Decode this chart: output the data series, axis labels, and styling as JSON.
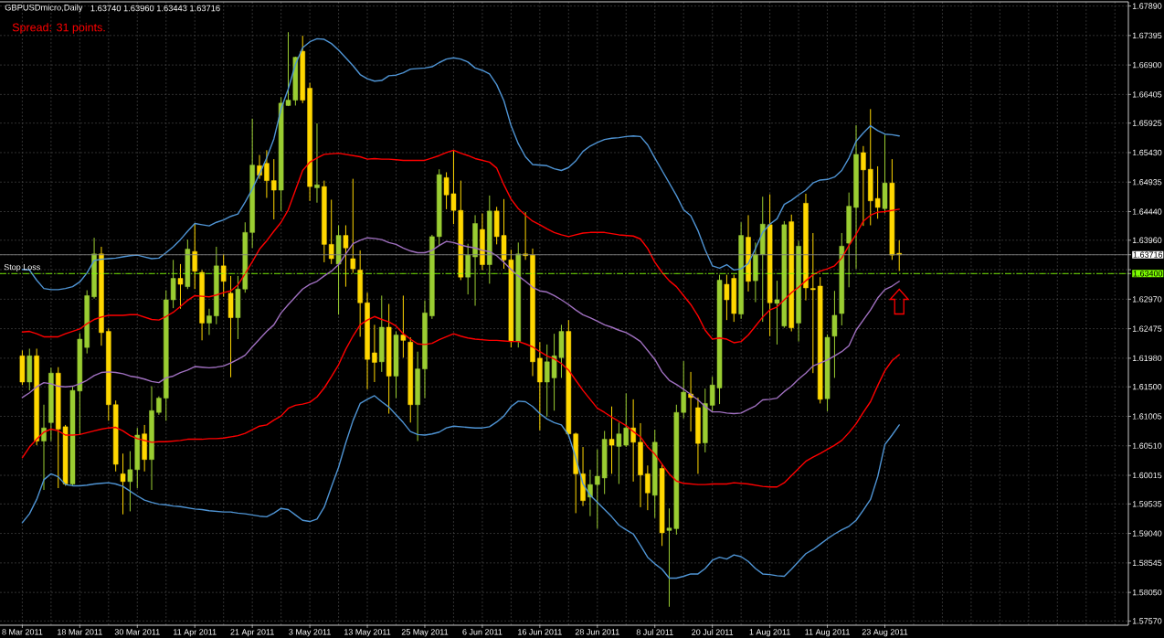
{
  "chart_data": {
    "type": "candlestick",
    "title": "GBPUSDmicro,Daily",
    "subtitle": "1.63740 1.63960 1.63443 1.63716",
    "annotations": [
      "Spread: 31 points."
    ],
    "categories": [
      "8 Mar 2011",
      null,
      null,
      null,
      null,
      null,
      null,
      null,
      "18 Mar 2011",
      null,
      null,
      null,
      null,
      null,
      null,
      null,
      "30 Mar 2011",
      null,
      null,
      null,
      null,
      null,
      null,
      null,
      "11 Apr 2011",
      null,
      null,
      null,
      null,
      null,
      null,
      null,
      "21 Apr 2011",
      null,
      null,
      null,
      null,
      null,
      null,
      null,
      "3 May 2011",
      null,
      null,
      null,
      null,
      null,
      null,
      null,
      "13 May 2011",
      null,
      null,
      null,
      null,
      null,
      null,
      null,
      "25 May 2011",
      null,
      null,
      null,
      null,
      null,
      null,
      null,
      "6 Jun 2011",
      null,
      null,
      null,
      null,
      null,
      null,
      null,
      "16 Jun 2011",
      null,
      null,
      null,
      null,
      null,
      null,
      null,
      "28 Jun 2011",
      null,
      null,
      null,
      null,
      null,
      null,
      null,
      "8 Jul 2011",
      null,
      null,
      null,
      null,
      null,
      null,
      null,
      "20 Jul 2011",
      null,
      null,
      null,
      null,
      null,
      null,
      null,
      "1 Aug 2011",
      null,
      null,
      null,
      null,
      null,
      null,
      null,
      "11 Aug 2011",
      null,
      null,
      null,
      null,
      null,
      null,
      null,
      "23 Aug 2011",
      null,
      null
    ],
    "ohlc": [
      [
        1.6202,
        1.6211,
        1.6153,
        1.6158
      ],
      [
        1.6158,
        1.6214,
        1.6144,
        1.6202
      ],
      [
        1.6202,
        1.6214,
        1.6052,
        1.6059
      ],
      [
        1.6059,
        1.612,
        1.5977,
        1.6081
      ],
      [
        1.609,
        1.6182,
        1.6059,
        1.6173
      ],
      [
        1.6173,
        1.6183,
        1.598,
        1.6079
      ],
      [
        1.6083,
        1.6086,
        1.5984,
        1.5987
      ],
      [
        1.5987,
        1.6151,
        1.5984,
        1.6144
      ],
      [
        1.6143,
        1.624,
        1.6069,
        1.623
      ],
      [
        1.6216,
        1.6312,
        1.6206,
        1.6303
      ],
      [
        1.6301,
        1.64,
        1.6298,
        1.6373
      ],
      [
        1.6373,
        1.6385,
        1.6219,
        1.6241
      ],
      [
        1.6243,
        1.6248,
        1.6093,
        1.612
      ],
      [
        1.612,
        1.6127,
        1.6008,
        1.602
      ],
      [
        1.6004,
        1.6038,
        1.5936,
        1.5991
      ],
      [
        1.5991,
        1.6042,
        1.5941,
        1.6011
      ],
      [
        1.6011,
        1.6081,
        1.598,
        1.6069
      ],
      [
        1.6071,
        1.6086,
        1.6008,
        1.6028
      ],
      [
        1.6028,
        1.6151,
        1.5977,
        1.611
      ],
      [
        1.6107,
        1.6134,
        1.6103,
        1.6131
      ],
      [
        1.6131,
        1.6312,
        1.6093,
        1.6296
      ],
      [
        1.6296,
        1.6363,
        1.6282,
        1.6332
      ],
      [
        1.6332,
        1.6356,
        1.6281,
        1.6322
      ],
      [
        1.6318,
        1.6397,
        1.6314,
        1.6381
      ],
      [
        1.6377,
        1.6424,
        1.6314,
        1.6344
      ],
      [
        1.6342,
        1.6346,
        1.6228,
        1.6257
      ],
      [
        1.6257,
        1.6281,
        1.6237,
        1.6269
      ],
      [
        1.6269,
        1.6385,
        1.6255,
        1.6353
      ],
      [
        1.6353,
        1.6373,
        1.6301,
        1.6327
      ],
      [
        1.6307,
        1.6336,
        1.6166,
        1.6266
      ],
      [
        1.6266,
        1.6336,
        1.623,
        1.6314
      ],
      [
        1.6314,
        1.6426,
        1.6308,
        1.6409
      ],
      [
        1.6409,
        1.66,
        1.6383,
        1.6522
      ],
      [
        1.6521,
        1.6539,
        1.6499,
        1.6505
      ],
      [
        1.6525,
        1.6547,
        1.6467,
        1.6496
      ],
      [
        1.6496,
        1.6532,
        1.6431,
        1.648
      ],
      [
        1.648,
        1.6636,
        1.6445,
        1.6626
      ],
      [
        1.6622,
        1.6745,
        1.6621,
        1.6631
      ],
      [
        1.6631,
        1.6704,
        1.6622,
        1.6703
      ],
      [
        1.6713,
        1.6739,
        1.6626,
        1.6631
      ],
      [
        1.6651,
        1.666,
        1.6462,
        1.6486
      ],
      [
        1.6484,
        1.6592,
        1.6459,
        1.6489
      ],
      [
        1.6486,
        1.6496,
        1.6359,
        1.6389
      ],
      [
        1.6389,
        1.6464,
        1.6356,
        1.6365
      ],
      [
        1.6356,
        1.6421,
        1.6271,
        1.6404
      ],
      [
        1.6404,
        1.6421,
        1.6318,
        1.6383
      ],
      [
        1.6365,
        1.6499,
        1.6341,
        1.6348
      ],
      [
        1.6346,
        1.6379,
        1.6234,
        1.6291
      ],
      [
        1.6291,
        1.6308,
        1.6146,
        1.6196
      ],
      [
        1.6207,
        1.6254,
        1.6158,
        1.6191
      ],
      [
        1.6192,
        1.6303,
        1.6175,
        1.625
      ],
      [
        1.625,
        1.6289,
        1.6105,
        1.6168
      ],
      [
        1.6168,
        1.6243,
        1.6131,
        1.6237
      ],
      [
        1.6237,
        1.6303,
        1.6199,
        1.6228
      ],
      [
        1.6225,
        1.6233,
        1.609,
        1.612
      ],
      [
        1.612,
        1.6209,
        1.6059,
        1.618
      ],
      [
        1.618,
        1.6295,
        1.6131,
        1.6274
      ],
      [
        1.6269,
        1.6405,
        1.6264,
        1.6402
      ],
      [
        1.6402,
        1.6515,
        1.6387,
        1.6506
      ],
      [
        1.6501,
        1.651,
        1.6448,
        1.6472
      ],
      [
        1.6474,
        1.6547,
        1.6423,
        1.6446
      ],
      [
        1.6446,
        1.6496,
        1.6329,
        1.6334
      ],
      [
        1.6334,
        1.639,
        1.6305,
        1.6371
      ],
      [
        1.6368,
        1.6438,
        1.6286,
        1.6424
      ],
      [
        1.6414,
        1.6441,
        1.6346,
        1.6355
      ],
      [
        1.6355,
        1.6471,
        1.6323,
        1.6445
      ],
      [
        1.6445,
        1.6452,
        1.6389,
        1.6402
      ],
      [
        1.6404,
        1.6465,
        1.6348,
        1.6363
      ],
      [
        1.6363,
        1.638,
        1.6216,
        1.6226
      ],
      [
        1.6226,
        1.6392,
        1.6216,
        1.6373
      ],
      [
        1.6373,
        1.6443,
        1.6363,
        1.637
      ],
      [
        1.6371,
        1.6382,
        1.6168,
        1.6192
      ],
      [
        1.6198,
        1.6225,
        1.6077,
        1.6158
      ],
      [
        1.6158,
        1.6221,
        1.61,
        1.6192
      ],
      [
        1.6165,
        1.6239,
        1.611,
        1.6202
      ],
      [
        1.6199,
        1.6254,
        1.6165,
        1.6243
      ],
      [
        1.6243,
        1.6262,
        1.6066,
        1.6071
      ],
      [
        1.6071,
        1.6073,
        1.5938,
        1.6004
      ],
      [
        1.6004,
        1.6049,
        1.595,
        1.5959
      ],
      [
        1.5965,
        1.6011,
        1.5933,
        1.5986
      ],
      [
        1.5986,
        1.6045,
        1.5912,
        1.6
      ],
      [
        1.5997,
        1.6076,
        1.597,
        1.6062
      ],
      [
        1.6062,
        1.6117,
        1.6004,
        1.6052
      ],
      [
        1.605,
        1.609,
        1.5987,
        1.6071
      ],
      [
        1.6052,
        1.6139,
        1.6049,
        1.6081
      ],
      [
        1.6081,
        1.6129,
        1.5991,
        1.6057
      ],
      [
        1.6057,
        1.6089,
        1.5948,
        1.6002
      ],
      [
        1.6004,
        1.6018,
        1.5943,
        1.5972
      ],
      [
        1.5968,
        1.6078,
        1.593,
        1.6057
      ],
      [
        1.6013,
        1.6021,
        1.5883,
        1.5905
      ],
      [
        1.5909,
        1.5946,
        1.5781,
        1.5913
      ],
      [
        1.5912,
        1.612,
        1.5902,
        1.6107
      ],
      [
        1.6107,
        1.6193,
        1.6097,
        1.6141
      ],
      [
        1.6138,
        1.6175,
        1.6075,
        1.6132
      ],
      [
        1.6115,
        1.6132,
        1.6004,
        1.6055
      ],
      [
        1.6056,
        1.6147,
        1.604,
        1.6122
      ],
      [
        1.6119,
        1.6167,
        1.6108,
        1.6153
      ],
      [
        1.6148,
        1.6338,
        1.6121,
        1.6329
      ],
      [
        1.6322,
        1.6338,
        1.6262,
        1.6296
      ],
      [
        1.6332,
        1.6338,
        1.6259,
        1.6273
      ],
      [
        1.6272,
        1.6426,
        1.6264,
        1.6404
      ],
      [
        1.6401,
        1.6438,
        1.631,
        1.6327
      ],
      [
        1.6328,
        1.6392,
        1.6292,
        1.6372
      ],
      [
        1.6372,
        1.6469,
        1.6259,
        1.6423
      ],
      [
        1.6422,
        1.6473,
        1.6235,
        1.6291
      ],
      [
        1.629,
        1.6328,
        1.6221,
        1.6296
      ],
      [
        1.6252,
        1.6428,
        1.6249,
        1.6422
      ],
      [
        1.6427,
        1.6439,
        1.6243,
        1.6249
      ],
      [
        1.6257,
        1.6395,
        1.6226,
        1.6386
      ],
      [
        1.6458,
        1.6474,
        1.6295,
        1.6316
      ],
      [
        1.6315,
        1.6408,
        1.6173,
        1.6313
      ],
      [
        1.6319,
        1.6334,
        1.6122,
        1.6129
      ],
      [
        1.613,
        1.6238,
        1.6109,
        1.6233
      ],
      [
        1.6235,
        1.6311,
        1.6165,
        1.627
      ],
      [
        1.6273,
        1.6408,
        1.6253,
        1.6386
      ],
      [
        1.6391,
        1.6476,
        1.6317,
        1.6453
      ],
      [
        1.6451,
        1.6589,
        1.6348,
        1.654
      ],
      [
        1.6543,
        1.6554,
        1.642,
        1.6514
      ],
      [
        1.6515,
        1.6616,
        1.6421,
        1.6462
      ],
      [
        1.6466,
        1.652,
        1.6432,
        1.6451
      ],
      [
        1.6449,
        1.6573,
        1.6441,
        1.6492
      ],
      [
        1.6492,
        1.6532,
        1.6363,
        1.6371
      ],
      [
        1.6374,
        1.6396,
        1.63443,
        1.63716
      ]
    ],
    "colors": [
      "#ffd700",
      "#9acd32",
      "#ffd700",
      "#9acd32",
      "#9acd32",
      "#ffd700",
      "#ffd700",
      "#9acd32",
      "#9acd32",
      "#9acd32",
      "#9acd32",
      "#ffd700",
      "#ffd700",
      "#ffd700",
      "#ffd700",
      "#9acd32",
      "#9acd32",
      "#ffd700",
      "#9acd32",
      "#9acd32",
      "#9acd32",
      "#9acd32",
      "#ffd700",
      "#9acd32",
      "#ffd700",
      "#ffd700",
      "#9acd32",
      "#9acd32",
      "#ffd700",
      "#ffd700",
      "#9acd32",
      "#9acd32",
      "#9acd32",
      "#ffd700",
      "#ffd700",
      "#ffd700",
      "#9acd32",
      "#9acd32",
      "#9acd32",
      "#ffd700",
      "#ffd700",
      "#9acd32",
      "#ffd700",
      "#ffd700",
      "#9acd32",
      "#ffd700",
      "#ffd700",
      "#ffd700",
      "#ffd700",
      "#ffd700",
      "#9acd32",
      "#ffd700",
      "#9acd32",
      "#ffd700",
      "#ffd700",
      "#9acd32",
      "#9acd32",
      "#9acd32",
      "#9acd32",
      "#ffd700",
      "#ffd700",
      "#ffd700",
      "#9acd32",
      "#9acd32",
      "#ffd700",
      "#9acd32",
      "#ffd700",
      "#ffd700",
      "#ffd700",
      "#9acd32",
      "#ffd700",
      "#ffd700",
      "#ffd700",
      "#9acd32",
      "#9acd32",
      "#9acd32",
      "#ffd700",
      "#ffd700",
      "#ffd700",
      "#9acd32",
      "#9acd32",
      "#9acd32",
      "#ffd700",
      "#9acd32",
      "#9acd32",
      "#ffd700",
      "#ffd700",
      "#ffd700",
      "#9acd32",
      "#ffd700",
      "#9acd32",
      "#9acd32",
      "#9acd32",
      "#ffd700",
      "#ffd700",
      "#9acd32",
      "#9acd32",
      "#9acd32",
      "#ffd700",
      "#ffd700",
      "#9acd32",
      "#ffd700",
      "#9acd32",
      "#9acd32",
      "#ffd700",
      "#9acd32",
      "#9acd32",
      "#ffd700",
      "#9acd32",
      "#ffd700",
      "#ffd700",
      "#ffd700",
      "#9acd32",
      "#9acd32",
      "#9acd32",
      "#9acd32",
      "#9acd32",
      "#ffd700",
      "#ffd700",
      "#ffd700",
      "#9acd32",
      "#ffd700",
      "#ffd700"
    ],
    "series": [
      {
        "type": "line",
        "color": "#4f94d4",
        "values": [
          1.6347,
          1.6346,
          1.6329,
          1.6315,
          1.6313,
          1.6313,
          1.6315,
          1.6318,
          1.6326,
          1.6341,
          1.6362,
          1.6364,
          1.6365,
          1.6366,
          1.6368,
          1.637,
          1.6371,
          1.6368,
          1.6365,
          1.6366,
          1.6375,
          1.6385,
          1.6397,
          1.6411,
          1.6424,
          1.6422,
          1.642,
          1.6426,
          1.643,
          1.6436,
          1.644,
          1.646,
          1.6482,
          1.6507,
          1.6534,
          1.6566,
          1.6616,
          1.665,
          1.6691,
          1.6719,
          1.6729,
          1.6734,
          1.6733,
          1.6726,
          1.6715,
          1.6702,
          1.6689,
          1.6674,
          1.6667,
          1.6663,
          1.6664,
          1.6672,
          1.6673,
          1.6677,
          1.6683,
          1.6684,
          1.6685,
          1.6687,
          1.6694,
          1.67,
          1.6702,
          1.67,
          1.6695,
          1.6685,
          1.6681,
          1.6675,
          1.6657,
          1.663,
          1.6588,
          1.6558,
          1.6536,
          1.6523,
          1.6522,
          1.6521,
          1.6516,
          1.6513,
          1.6518,
          1.6529,
          1.6545,
          1.6554,
          1.656,
          1.6565,
          1.6567,
          1.6568,
          1.657,
          1.6571,
          1.657,
          1.6556,
          1.6534,
          1.6513,
          1.6492,
          1.6471,
          1.6447,
          1.6437,
          1.6412,
          1.638,
          1.6353,
          1.6349,
          1.6355,
          1.6346,
          1.6348,
          1.6357,
          1.6382,
          1.6409,
          1.6423,
          1.6432,
          1.6456,
          1.6463,
          1.6472,
          1.648,
          1.6492,
          1.6497,
          1.6498,
          1.6502,
          1.6513,
          1.6534,
          1.6562,
          1.6576,
          1.6588,
          1.658,
          1.6574,
          1.6573,
          1.6571
        ]
      },
      {
        "type": "line",
        "color": "#ff0000",
        "values": [
          1.6242,
          1.6243,
          1.6239,
          1.6234,
          1.6234,
          1.6234,
          1.6239,
          1.6243,
          1.6247,
          1.6256,
          1.6263,
          1.6267,
          1.627,
          1.627,
          1.627,
          1.6271,
          1.6271,
          1.6267,
          1.6263,
          1.6262,
          1.6268,
          1.6275,
          1.6285,
          1.6295,
          1.6303,
          1.6302,
          1.6301,
          1.6304,
          1.6308,
          1.6311,
          1.6321,
          1.634,
          1.636,
          1.6381,
          1.6395,
          1.6411,
          1.6426,
          1.6447,
          1.648,
          1.6513,
          1.6527,
          1.6534,
          1.654,
          1.6541,
          1.6542,
          1.654,
          1.6538,
          1.6536,
          1.6532,
          1.6533,
          1.6532,
          1.6532,
          1.6531,
          1.653,
          1.653,
          1.653,
          1.653,
          1.6534,
          1.6538,
          1.6543,
          1.6547,
          1.6542,
          1.6538,
          1.6533,
          1.653,
          1.6527,
          1.6517,
          1.6489,
          1.6465,
          1.6449,
          1.6438,
          1.6428,
          1.6422,
          1.6415,
          1.6409,
          1.6405,
          1.6402,
          1.6405,
          1.6408,
          1.6409,
          1.6409,
          1.6409,
          1.6407,
          1.6405,
          1.6404,
          1.6403,
          1.6398,
          1.6382,
          1.6359,
          1.6342,
          1.6328,
          1.6318,
          1.6303,
          1.6288,
          1.6269,
          1.6245,
          1.623,
          1.6232,
          1.623,
          1.6224,
          1.6226,
          1.6237,
          1.6252,
          1.6267,
          1.6279,
          1.6284,
          1.6296,
          1.6308,
          1.6317,
          1.6328,
          1.6338,
          1.6344,
          1.6348,
          1.6353,
          1.6366,
          1.6387,
          1.6406,
          1.6428,
          1.6438,
          1.6443,
          1.6444,
          1.6446,
          1.6448
        ]
      },
      {
        "type": "line",
        "color": "#a070c0",
        "values": [
          1.6132,
          1.614,
          1.615,
          1.6157,
          1.6155,
          1.6151,
          1.615,
          1.6151,
          1.6155,
          1.6161,
          1.6169,
          1.6174,
          1.6175,
          1.6174,
          1.6172,
          1.6168,
          1.6166,
          1.6163,
          1.6159,
          1.6157,
          1.6165,
          1.6168,
          1.6174,
          1.6178,
          1.6184,
          1.6183,
          1.6182,
          1.6183,
          1.6185,
          1.619,
          1.6196,
          1.6203,
          1.6217,
          1.623,
          1.6243,
          1.6254,
          1.6274,
          1.6288,
          1.6301,
          1.6314,
          1.6322,
          1.6327,
          1.6336,
          1.6344,
          1.6355,
          1.6373,
          1.639,
          1.6396,
          1.64,
          1.6399,
          1.6397,
          1.6392,
          1.6389,
          1.6383,
          1.6378,
          1.6375,
          1.6375,
          1.6379,
          1.6387,
          1.6394,
          1.6392,
          1.6388,
          1.6385,
          1.6383,
          1.6379,
          1.6377,
          1.637,
          1.6359,
          1.6347,
          1.6336,
          1.6327,
          1.6317,
          1.6311,
          1.6309,
          1.6303,
          1.6296,
          1.6288,
          1.6279,
          1.6271,
          1.6266,
          1.626,
          1.6254,
          1.625,
          1.6245,
          1.6241,
          1.6234,
          1.6226,
          1.6211,
          1.6196,
          1.6175,
          1.6161,
          1.6154,
          1.6146,
          1.6137,
          1.6128,
          1.6117,
          1.6108,
          1.6108,
          1.6106,
          1.6105,
          1.6106,
          1.6112,
          1.6118,
          1.6128,
          1.6129,
          1.6131,
          1.6142,
          1.6151,
          1.6163,
          1.6173,
          1.6185,
          1.619,
          1.6195,
          1.6202,
          1.6209,
          1.6219,
          1.6245,
          1.6262,
          1.6279,
          1.6299,
          1.6313,
          1.6319,
          1.6327
        ]
      },
      {
        "type": "line",
        "color": "#ff0000",
        "values": [
          1.6031,
          1.6049,
          1.6062,
          1.6074,
          1.6079,
          1.6076,
          1.6069,
          1.6069,
          1.607,
          1.6073,
          1.6076,
          1.6079,
          1.6081,
          1.6082,
          1.6076,
          1.6068,
          1.6063,
          1.606,
          1.6057,
          1.6058,
          1.6058,
          1.6059,
          1.606,
          1.6062,
          1.6062,
          1.6062,
          1.6063,
          1.6063,
          1.6064,
          1.6066,
          1.6068,
          1.6072,
          1.6078,
          1.6084,
          1.6086,
          1.6094,
          1.6101,
          1.6114,
          1.6119,
          1.6121,
          1.6124,
          1.6133,
          1.6148,
          1.6167,
          1.6187,
          1.6213,
          1.6235,
          1.6254,
          1.6262,
          1.6268,
          1.6263,
          1.6259,
          1.6252,
          1.6239,
          1.623,
          1.6222,
          1.6221,
          1.6223,
          1.6229,
          1.6234,
          1.6239,
          1.6235,
          1.6232,
          1.623,
          1.6229,
          1.6228,
          1.6228,
          1.6227,
          1.6226,
          1.6226,
          1.6222,
          1.6217,
          1.6209,
          1.6202,
          1.6197,
          1.6189,
          1.6178,
          1.6161,
          1.6144,
          1.6129,
          1.6114,
          1.6107,
          1.6099,
          1.6092,
          1.6085,
          1.6075,
          1.6066,
          1.6049,
          1.6037,
          1.602,
          1.6004,
          1.5992,
          1.5988,
          1.5987,
          1.5986,
          1.5986,
          1.5987,
          1.5987,
          1.5987,
          1.5989,
          1.5988,
          1.5987,
          1.5985,
          1.5983,
          1.5982,
          1.5982,
          1.5989,
          1.6001,
          1.6013,
          1.6025,
          1.6032,
          1.6038,
          1.6045,
          1.6052,
          1.606,
          1.6073,
          1.6088,
          1.6107,
          1.6125,
          1.6152,
          1.6177,
          1.6194,
          1.6204
        ]
      },
      {
        "type": "line",
        "color": "#4f94d4",
        "values": [
          1.5922,
          1.5937,
          1.5961,
          1.5994,
          1.6004,
          1.5999,
          1.5986,
          1.5984,
          1.5984,
          1.5985,
          1.5987,
          1.5988,
          1.5989,
          1.5987,
          1.5983,
          1.5975,
          1.5967,
          1.596,
          1.5956,
          1.5953,
          1.5952,
          1.595,
          1.5949,
          1.5947,
          1.5945,
          1.5944,
          1.5942,
          1.5941,
          1.594,
          1.594,
          1.5938,
          1.5937,
          1.5935,
          1.5933,
          1.5932,
          1.5938,
          1.5946,
          1.5944,
          1.5935,
          1.5926,
          1.5924,
          1.5928,
          1.5948,
          1.5982,
          1.6015,
          1.6056,
          1.6093,
          1.6122,
          1.6129,
          1.6135,
          1.6125,
          1.6116,
          1.6103,
          1.609,
          1.6075,
          1.607,
          1.6069,
          1.6071,
          1.6074,
          1.6081,
          1.6084,
          1.6083,
          1.6082,
          1.6081,
          1.6081,
          1.6083,
          1.6091,
          1.6101,
          1.6117,
          1.6126,
          1.6125,
          1.6117,
          1.6105,
          1.6096,
          1.609,
          1.6086,
          1.6069,
          1.6031,
          1.5987,
          1.5968,
          1.5956,
          1.5944,
          1.5932,
          1.5918,
          1.591,
          1.5903,
          1.5884,
          1.5864,
          1.5853,
          1.5844,
          1.5829,
          1.5829,
          1.5832,
          1.5836,
          1.5836,
          1.5845,
          1.5859,
          1.5864,
          1.5861,
          1.5868,
          1.5865,
          1.5857,
          1.5845,
          1.5836,
          1.5835,
          1.5833,
          1.5832,
          1.5844,
          1.5857,
          1.587,
          1.5877,
          1.5886,
          1.5895,
          1.5903,
          1.591,
          1.5916,
          1.5926,
          1.5943,
          1.5961,
          1.5999,
          1.6053,
          1.6069,
          1.6086
        ]
      }
    ],
    "ylim": [
      1.575,
      1.6796
    ],
    "yticks": [
      {
        "value": 1.6789,
        "label": "1.67890"
      },
      1.67395,
      {
        "value": 1.669,
        "label": "1.66900"
      },
      1.66405,
      1.65925,
      {
        "value": 1.6543,
        "label": "1.65430"
      },
      1.64935,
      {
        "value": 1.6444,
        "label": "1.64440"
      },
      {
        "value": 1.6396,
        "label": "1.63960"
      },
      1.63716,
      {
        "value": 1.63465,
        "label": null
      },
      {
        "value": 1.634,
        "label": "1.63400"
      },
      {
        "value": 1.6297,
        "label": "1.62970"
      },
      1.62475,
      {
        "value": 1.6198,
        "label": "1.61980"
      },
      {
        "value": 1.615,
        "label": "1.61500"
      },
      1.61005,
      {
        "value": 1.6051,
        "label": "1.60510"
      },
      1.60015,
      1.59535,
      {
        "value": 1.5904,
        "label": "1.59040"
      },
      1.58545,
      {
        "value": 1.5805,
        "label": "1.58050"
      },
      {
        "value": 1.5757,
        "label": "1.57570"
      }
    ],
    "grid": true,
    "ref_lines": [
      {
        "axis": "y",
        "value": 1.63716,
        "color": "#808080",
        "line_style": "solid"
      },
      {
        "axis": "y",
        "value": 1.634,
        "label": "Stop Loss",
        "color": "#7cfc00",
        "line_style": "dashed"
      }
    ]
  }
}
